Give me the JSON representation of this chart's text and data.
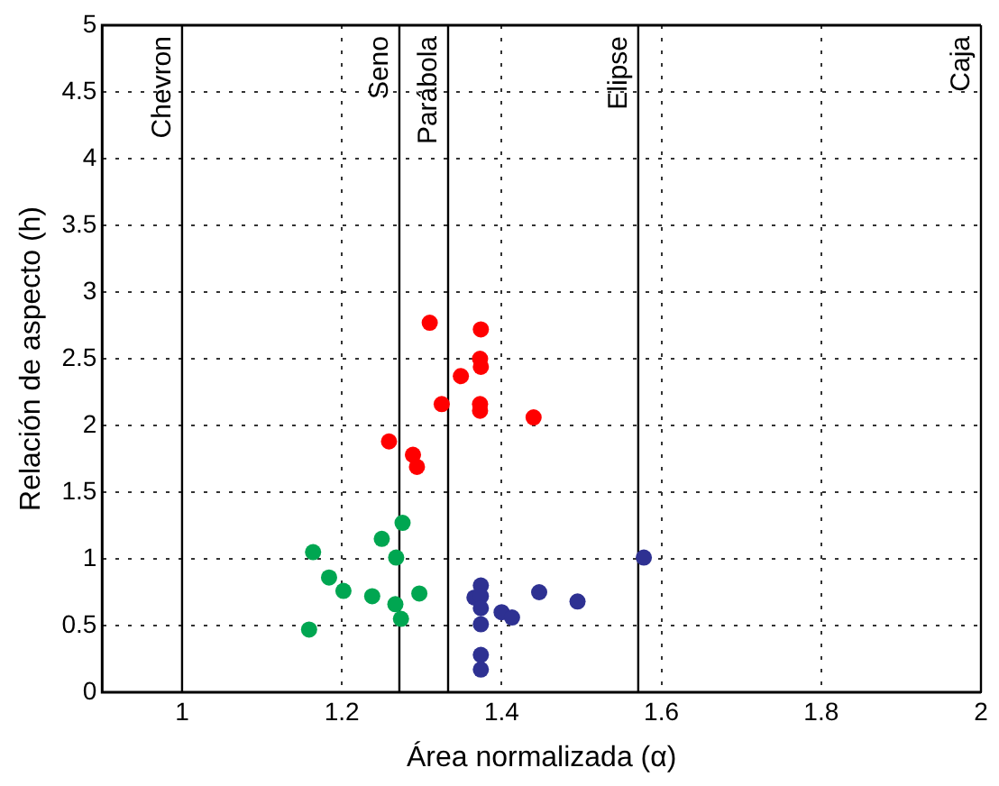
{
  "chart_data": {
    "type": "scatter",
    "xlabel": "Área normalizada (α)",
    "ylabel": "Relación de aspecto (h)",
    "xlim": [
      0.9,
      2
    ],
    "xticks": [
      1,
      1.2,
      1.4,
      1.6,
      1.8,
      2
    ],
    "ylim": [
      0,
      5
    ],
    "yticks": [
      0,
      0.5,
      1,
      1.5,
      2,
      2.5,
      3,
      3.5,
      4,
      4.5,
      5
    ],
    "grid": true,
    "marker": "circle",
    "series": [
      {
        "color": "#ff0000",
        "x": [
          1.31,
          1.374,
          1.373,
          1.374,
          1.349,
          1.325,
          1.373,
          1.373,
          1.44,
          1.259,
          1.289,
          1.294
        ],
        "values": [
          2.77,
          2.72,
          2.5,
          2.44,
          2.37,
          2.16,
          2.16,
          2.11,
          2.06,
          1.88,
          1.78,
          1.69
        ]
      },
      {
        "color": "#00a651",
        "x": [
          1.276,
          1.25,
          1.164,
          1.268,
          1.184,
          1.202,
          1.238,
          1.297,
          1.267,
          1.274,
          1.159
        ],
        "values": [
          1.27,
          1.15,
          1.05,
          1.01,
          0.86,
          0.76,
          0.72,
          0.74,
          0.66,
          0.55,
          0.47
        ]
      },
      {
        "color": "#2e3192",
        "x": [
          1.374,
          1.366,
          1.374,
          1.374,
          1.374,
          1.4,
          1.413,
          1.374,
          1.374,
          1.447,
          1.495,
          1.578
        ],
        "values": [
          0.8,
          0.71,
          0.72,
          0.63,
          0.51,
          0.6,
          0.56,
          0.28,
          0.17,
          0.75,
          0.68,
          1.01
        ]
      }
    ],
    "ref_lines": [
      {
        "axis": "x",
        "value": 1,
        "label": "Chevron",
        "color": "#000000"
      },
      {
        "axis": "x",
        "value": 1.272,
        "label": "Seno",
        "color": "#000000"
      },
      {
        "axis": "x",
        "value": 1.333,
        "label": "Parábola",
        "color": "#000000"
      },
      {
        "axis": "x",
        "value": 1.571,
        "label": "Elipse",
        "color": "#000000"
      },
      {
        "axis": "x",
        "value": 2,
        "label": "Caja",
        "color": "#000000"
      }
    ]
  }
}
